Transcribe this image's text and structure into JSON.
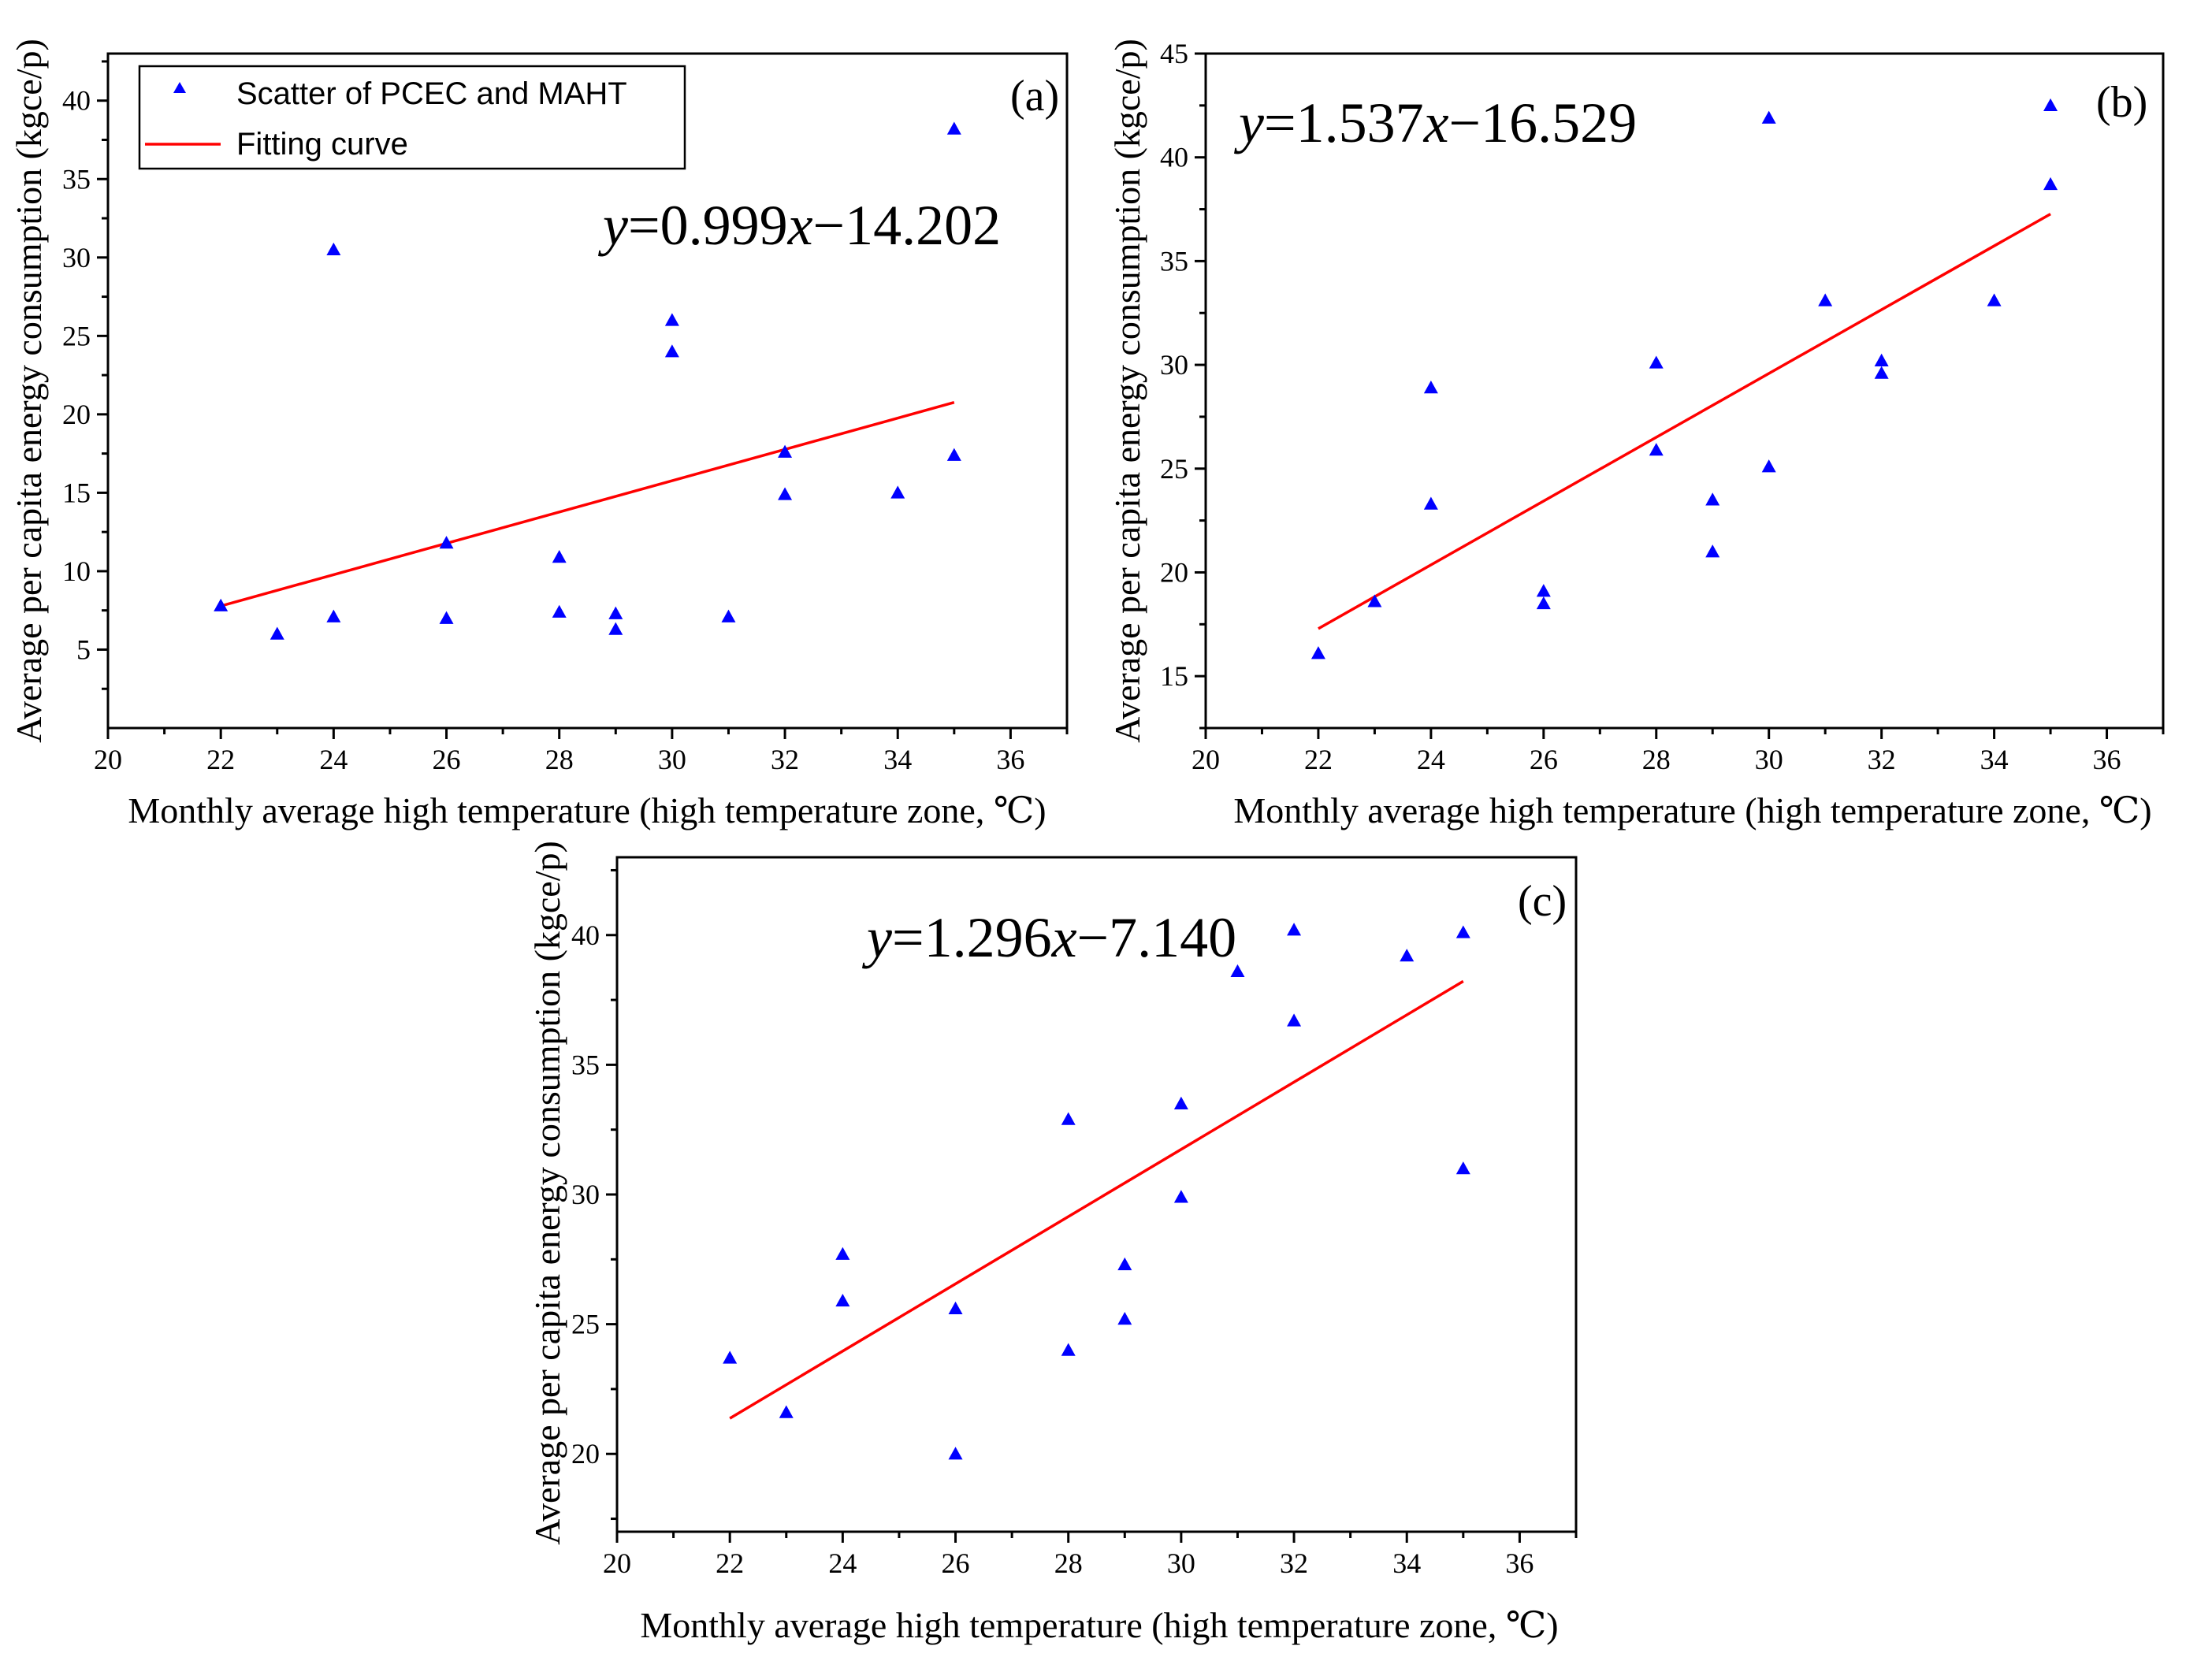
{
  "chart_data": [
    {
      "type": "scatter",
      "panel_label": "(a)",
      "equation": {
        "prefix": "y",
        "mid": "=0.999",
        "var": "x",
        "suffix": "−14.202"
      },
      "xlabel": "Monthly average high temperature (high temperature zone, ℃)",
      "ylabel": "Average per capita energy consumption (kgce/p)",
      "xlim": [
        20,
        37
      ],
      "ylim": [
        0,
        43
      ],
      "x_ticks": [
        20,
        22,
        24,
        26,
        28,
        30,
        32,
        34,
        36
      ],
      "y_ticks": [
        5,
        10,
        15,
        20,
        25,
        30,
        35,
        40
      ],
      "legend": {
        "position": "top-left",
        "items": [
          {
            "label": "Scatter of PCEC and MAHT",
            "kind": "marker",
            "color": "#0000ff"
          },
          {
            "label": "Fitting curve",
            "kind": "line",
            "color": "#ff0000"
          }
        ]
      },
      "points": [
        {
          "x": 22,
          "y": 7.8
        },
        {
          "x": 23,
          "y": 6.0
        },
        {
          "x": 24,
          "y": 30.5
        },
        {
          "x": 24,
          "y": 7.1
        },
        {
          "x": 26,
          "y": 11.8
        },
        {
          "x": 26,
          "y": 7.0
        },
        {
          "x": 28,
          "y": 10.9
        },
        {
          "x": 28,
          "y": 7.4
        },
        {
          "x": 29,
          "y": 7.3
        },
        {
          "x": 29,
          "y": 6.3
        },
        {
          "x": 30,
          "y": 26.0
        },
        {
          "x": 30,
          "y": 24.0
        },
        {
          "x": 31,
          "y": 7.1
        },
        {
          "x": 32,
          "y": 17.6
        },
        {
          "x": 32,
          "y": 14.9
        },
        {
          "x": 34,
          "y": 15.0
        },
        {
          "x": 35,
          "y": 38.2
        },
        {
          "x": 35,
          "y": 17.4
        }
      ],
      "fit": {
        "x": [
          22,
          35
        ],
        "y": [
          7.78,
          20.76
        ]
      }
    },
    {
      "type": "scatter",
      "panel_label": "(b)",
      "equation": {
        "prefix": "y",
        "mid": "=1.537",
        "var": "x",
        "suffix": "−16.529"
      },
      "xlabel": "Monthly average high temperature (high temperature zone, ℃)",
      "ylabel": "Average per capita energy consumption (kgce/p)",
      "xlim": [
        20,
        37
      ],
      "ylim": [
        12.5,
        45
      ],
      "x_ticks": [
        20,
        22,
        24,
        26,
        28,
        30,
        32,
        34,
        36
      ],
      "y_ticks": [
        15,
        20,
        25,
        30,
        35,
        40,
        45
      ],
      "points": [
        {
          "x": 22,
          "y": 16.1
        },
        {
          "x": 23,
          "y": 18.6
        },
        {
          "x": 24,
          "y": 28.9
        },
        {
          "x": 24,
          "y": 23.3
        },
        {
          "x": 26,
          "y": 19.1
        },
        {
          "x": 26,
          "y": 18.5
        },
        {
          "x": 28,
          "y": 30.1
        },
        {
          "x": 28,
          "y": 25.9
        },
        {
          "x": 29,
          "y": 23.5
        },
        {
          "x": 29,
          "y": 21.0
        },
        {
          "x": 30,
          "y": 41.9
        },
        {
          "x": 30,
          "y": 25.1
        },
        {
          "x": 31,
          "y": 33.1
        },
        {
          "x": 32,
          "y": 30.2
        },
        {
          "x": 32,
          "y": 29.6
        },
        {
          "x": 34,
          "y": 33.1
        },
        {
          "x": 35,
          "y": 42.5
        },
        {
          "x": 35,
          "y": 38.7
        }
      ],
      "fit": {
        "x": [
          22,
          35
        ],
        "y": [
          17.29,
          37.27
        ]
      }
    },
    {
      "type": "scatter",
      "panel_label": "(c)",
      "equation": {
        "prefix": "y",
        "mid": "=1.296",
        "var": "x",
        "suffix": "−7.140"
      },
      "xlabel": "Monthly average high temperature (high temperature zone, ℃)",
      "ylabel": "Average per capita energy consumption (kgce/p)",
      "xlim": [
        20,
        37
      ],
      "ylim": [
        17,
        43
      ],
      "x_ticks": [
        20,
        22,
        24,
        26,
        28,
        30,
        32,
        34,
        36
      ],
      "y_ticks": [
        20,
        25,
        30,
        35,
        40
      ],
      "points": [
        {
          "x": 22,
          "y": 23.7
        },
        {
          "x": 23,
          "y": 21.6
        },
        {
          "x": 24,
          "y": 27.7
        },
        {
          "x": 24,
          "y": 25.9
        },
        {
          "x": 26,
          "y": 25.6
        },
        {
          "x": 26,
          "y": 20.0
        },
        {
          "x": 28,
          "y": 32.9
        },
        {
          "x": 28,
          "y": 24.0
        },
        {
          "x": 29,
          "y": 27.3
        },
        {
          "x": 29,
          "y": 25.2
        },
        {
          "x": 30,
          "y": 33.5
        },
        {
          "x": 30,
          "y": 29.9
        },
        {
          "x": 31,
          "y": 38.6
        },
        {
          "x": 32,
          "y": 40.2
        },
        {
          "x": 32,
          "y": 36.7
        },
        {
          "x": 34,
          "y": 39.2
        },
        {
          "x": 35,
          "y": 40.1
        },
        {
          "x": 35,
          "y": 31.0
        }
      ],
      "fit": {
        "x": [
          22,
          35
        ],
        "y": [
          21.37,
          38.22
        ]
      }
    }
  ]
}
